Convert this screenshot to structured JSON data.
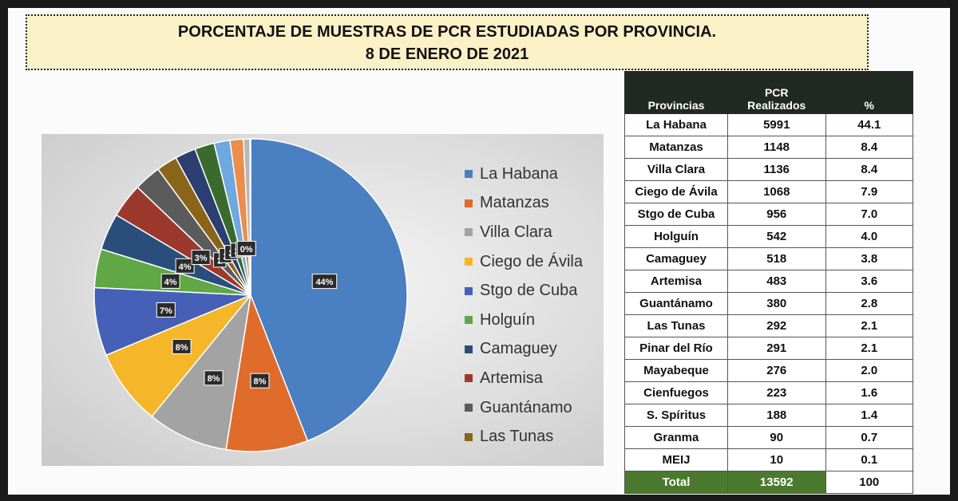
{
  "header": {
    "title_line1": "PORCENTAJE DE MUESTRAS DE PCR ESTUDIADAS POR PROVINCIA.",
    "title_line2": "8 DE ENERO DE 2021"
  },
  "chart_data": {
    "type": "pie",
    "legend_position": "right",
    "slice_labels": [
      "44%",
      "8%",
      "8%",
      "8%",
      "7%",
      "4%",
      "4%",
      "3%",
      "2",
      "2",
      "2",
      "2",
      "2",
      "0%"
    ],
    "series": [
      {
        "name": "La Habana",
        "value": 5991,
        "color": "#4a7fc1"
      },
      {
        "name": "Matanzas",
        "value": 1148,
        "color": "#e06c2c"
      },
      {
        "name": "Villa Clara",
        "value": 1136,
        "color": "#a3a3a3"
      },
      {
        "name": "Ciego de Ávila",
        "value": 1068,
        "color": "#f5b629"
      },
      {
        "name": "Stgo de Cuba",
        "value": 956,
        "color": "#4660b8"
      },
      {
        "name": "Holguín",
        "value": 542,
        "color": "#5fa845"
      },
      {
        "name": "Camaguey",
        "value": 518,
        "color": "#2a4e7c"
      },
      {
        "name": "Artemisa",
        "value": 483,
        "color": "#9b3a2c"
      },
      {
        "name": "Guantánamo",
        "value": 380,
        "color": "#5b5b5b"
      },
      {
        "name": "Las Tunas",
        "value": 292,
        "color": "#8a6418"
      },
      {
        "name": "Pinar del Río",
        "value": 291,
        "color": "#2b3f70"
      },
      {
        "name": "Mayabeque",
        "value": 276,
        "color": "#3a6b2c"
      },
      {
        "name": "Cienfuegos",
        "value": 223,
        "color": "#6fa7df"
      },
      {
        "name": "S. Spíritus",
        "value": 188,
        "color": "#ec8d4e"
      },
      {
        "name": "Granma",
        "value": 90,
        "color": "#b8b8b8"
      },
      {
        "name": "MEIJ",
        "value": 10,
        "color": "#f7c550"
      }
    ],
    "legend_count": 10
  },
  "table": {
    "headers": {
      "prov": "Provincias",
      "pcr_line1": "PCR",
      "pcr_line2": "Realizados",
      "pct": "%"
    },
    "rows": [
      [
        "La Habana",
        "5991",
        "44.1"
      ],
      [
        "Matanzas",
        "1148",
        "8.4"
      ],
      [
        "Villa Clara",
        "1136",
        "8.4"
      ],
      [
        "Ciego de Ávila",
        "1068",
        "7.9"
      ],
      [
        "Stgo de Cuba",
        "956",
        "7.0"
      ],
      [
        "Holguín",
        "542",
        "4.0"
      ],
      [
        "Camaguey",
        "518",
        "3.8"
      ],
      [
        "Artemisa",
        "483",
        "3.6"
      ],
      [
        "Guantánamo",
        "380",
        "2.8"
      ],
      [
        "Las Tunas",
        "292",
        "2.1"
      ],
      [
        "Pinar del Río",
        "291",
        "2.1"
      ],
      [
        "Mayabeque",
        "276",
        "2.0"
      ],
      [
        "Cienfuegos",
        "223",
        "1.6"
      ],
      [
        "S. Spíritus",
        "188",
        "1.4"
      ],
      [
        "Granma",
        "90",
        "0.7"
      ],
      [
        "MEIJ",
        "10",
        "0.1"
      ]
    ],
    "total": [
      "Total",
      "13592",
      "100"
    ],
    "total_color": "#4b7a2e"
  }
}
